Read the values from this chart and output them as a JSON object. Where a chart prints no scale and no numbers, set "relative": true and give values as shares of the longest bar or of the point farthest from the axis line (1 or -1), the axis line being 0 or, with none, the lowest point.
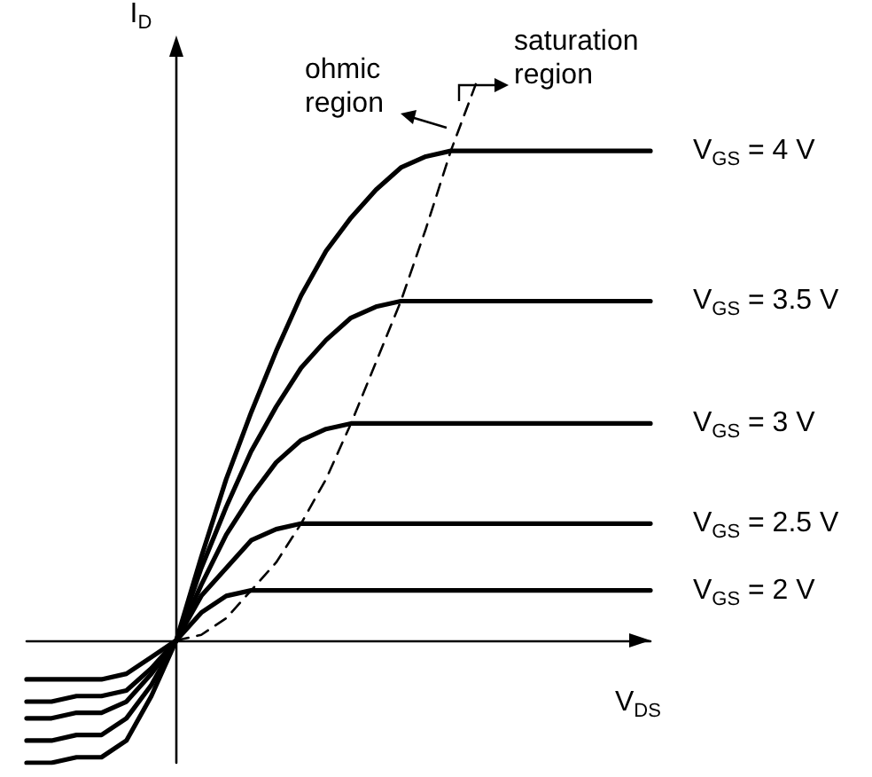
{
  "chart_data": {
    "type": "line",
    "relative": true,
    "xlabel": "V$_{DS}$",
    "ylabel": "I$_{D}$",
    "categories": [
      null,
      null,
      null,
      null,
      null,
      null,
      null,
      null,
      null,
      null,
      null,
      null,
      null,
      null,
      null,
      null,
      null,
      null,
      null,
      null,
      null,
      null,
      null,
      null,
      null,
      null
    ],
    "series": [
      {
        "name": "V$_{GS}$ = 4 V",
        "color": "#000000",
        "values": [
          -0.22,
          -0.22,
          -0.21,
          -0.21,
          -0.18,
          -0.1,
          0,
          0.15,
          0.29,
          0.41,
          0.52,
          0.62,
          0.7,
          0.76,
          0.81,
          0.85,
          0.87,
          0.88,
          0.88,
          0.88,
          0.88,
          0.88,
          0.88,
          0.88,
          0.88,
          0.88
        ]
      },
      {
        "name": "V$_{GS}$ = 3.5 V",
        "color": "#000000",
        "values": [
          -0.18,
          -0.18,
          -0.17,
          -0.17,
          -0.14,
          -0.08,
          0,
          0.13,
          0.24,
          0.34,
          0.42,
          0.49,
          0.54,
          0.58,
          0.6,
          0.61,
          0.61,
          0.61,
          0.61,
          0.61,
          0.61,
          0.61,
          0.61,
          0.61,
          0.61,
          0.61
        ]
      },
      {
        "name": "V$_{GS}$ = 3 V",
        "color": "#000000",
        "values": [
          -0.14,
          -0.14,
          -0.13,
          -0.13,
          -0.11,
          -0.06,
          0,
          0.1,
          0.19,
          0.26,
          0.32,
          0.36,
          0.38,
          0.39,
          0.39,
          0.39,
          0.39,
          0.39,
          0.39,
          0.39,
          0.39,
          0.39,
          0.39,
          0.39,
          0.39,
          0.39
        ]
      },
      {
        "name": "V$_{GS}$ = 2.5 V",
        "color": "#000000",
        "values": [
          -0.11,
          -0.11,
          -0.1,
          -0.1,
          -0.09,
          -0.05,
          0,
          0.08,
          0.13,
          0.18,
          0.2,
          0.21,
          0.21,
          0.21,
          0.21,
          0.21,
          0.21,
          0.21,
          0.21,
          0.21,
          0.21,
          0.21,
          0.21,
          0.21,
          0.21,
          0.21
        ]
      },
      {
        "name": "V$_{GS}$ = 2 V",
        "color": "#000000",
        "values": [
          -0.07,
          -0.07,
          -0.07,
          -0.07,
          -0.06,
          -0.03,
          0,
          0.05,
          0.08,
          0.09,
          0.09,
          0.09,
          0.09,
          0.09,
          0.09,
          0.09,
          0.09,
          0.09,
          0.09,
          0.09,
          0.09,
          0.09,
          0.09,
          0.09,
          0.09,
          0.09
        ]
      },
      {
        "color": "#000000",
        "line_style": "dashed",
        "values": [
          null,
          null,
          null,
          null,
          null,
          null,
          0,
          0.01,
          0.04,
          0.09,
          0.14,
          0.21,
          0.29,
          0.39,
          0.5,
          0.61,
          0.74,
          0.88,
          1.0,
          null,
          null,
          null,
          null,
          null,
          null,
          null
        ]
      }
    ],
    "annotations": [
      "ohmic region",
      "saturation region"
    ],
    "marker": "none",
    "legend": false,
    "grid": false
  }
}
